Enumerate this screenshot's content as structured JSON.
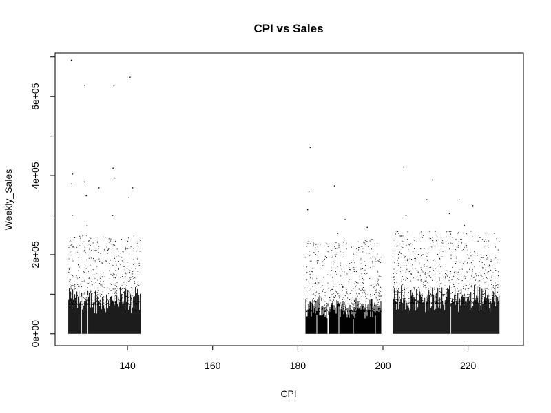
{
  "chart_data": {
    "type": "scatter",
    "title": "CPI vs Sales",
    "xlabel": "CPI",
    "ylabel": "Weekly_Sales",
    "xlim": [
      123,
      233
    ],
    "ylim": [
      -30000,
      710000
    ],
    "x_ticks": [
      140,
      160,
      180,
      200,
      220
    ],
    "x_tick_labels": [
      "140",
      "160",
      "180",
      "200",
      "220"
    ],
    "y_ticks": [
      0,
      100000,
      200000,
      300000,
      400000,
      500000,
      600000,
      700000
    ],
    "y_tick_labels": [
      "0e+00",
      "",
      "2e+05",
      "",
      "4e+05",
      "",
      "6e+05",
      ""
    ],
    "grid": false,
    "legend": "none",
    "point_color": "#000000",
    "clusters": [
      {
        "x_range": [
          126.1,
          143.0
        ],
        "dense_max": 125000,
        "scatter_max": 250000
      },
      {
        "x_range": [
          181.8,
          199.5
        ],
        "dense_max": 95000,
        "scatter_max": 240000
      },
      {
        "x_range": [
          202.3,
          227.3
        ],
        "dense_max": 130000,
        "scatter_max": 260000
      }
    ],
    "points": [
      {
        "x": 126.7,
        "y": 693000
      },
      {
        "x": 129.8,
        "y": 630000
      },
      {
        "x": 136.7,
        "y": 628000
      },
      {
        "x": 140.5,
        "y": 650000
      },
      {
        "x": 127.0,
        "y": 405000
      },
      {
        "x": 126.8,
        "y": 380000
      },
      {
        "x": 129.8,
        "y": 385000
      },
      {
        "x": 130.2,
        "y": 350000
      },
      {
        "x": 133.2,
        "y": 370000
      },
      {
        "x": 136.5,
        "y": 420000
      },
      {
        "x": 136.9,
        "y": 395000
      },
      {
        "x": 141.1,
        "y": 370000
      },
      {
        "x": 140.2,
        "y": 345000
      },
      {
        "x": 126.9,
        "y": 300000
      },
      {
        "x": 130.4,
        "y": 275000
      },
      {
        "x": 136.4,
        "y": 300000
      },
      {
        "x": 182.8,
        "y": 472000
      },
      {
        "x": 182.5,
        "y": 360000
      },
      {
        "x": 182.2,
        "y": 315000
      },
      {
        "x": 188.5,
        "y": 375000
      },
      {
        "x": 191.0,
        "y": 290000
      },
      {
        "x": 189.3,
        "y": 255000
      },
      {
        "x": 196.2,
        "y": 270000
      },
      {
        "x": 204.7,
        "y": 423000
      },
      {
        "x": 211.5,
        "y": 390000
      },
      {
        "x": 210.2,
        "y": 340000
      },
      {
        "x": 217.8,
        "y": 340000
      },
      {
        "x": 222.8,
        "y": 245000
      },
      {
        "x": 215.5,
        "y": 305000
      },
      {
        "x": 221.0,
        "y": 325000
      },
      {
        "x": 219.0,
        "y": 275000
      },
      {
        "x": 205.3,
        "y": 300000
      }
    ]
  }
}
